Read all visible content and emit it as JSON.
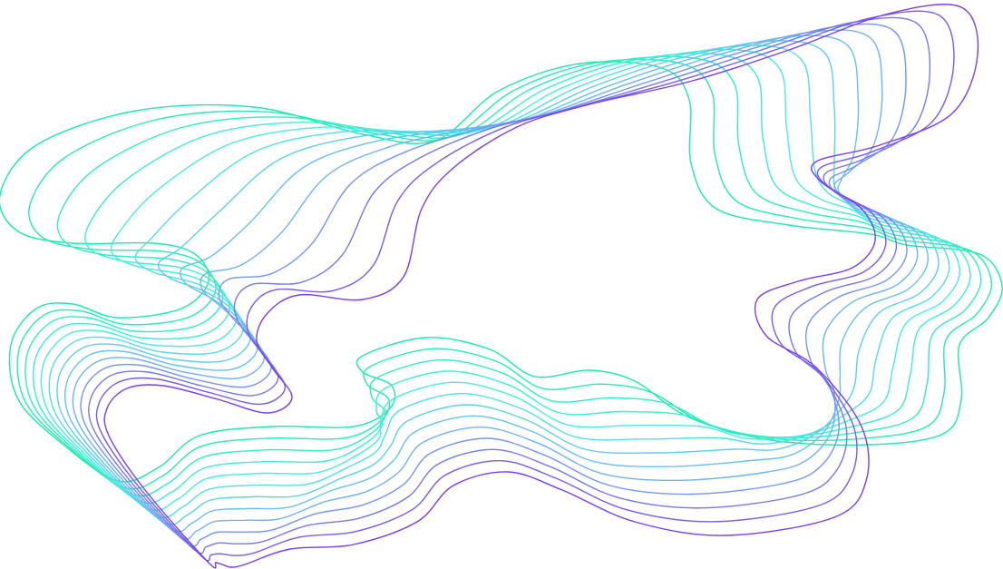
{
  "artwork": {
    "style": "abstract flowing contour lines",
    "line_count": 13,
    "colors": {
      "outer": "#14eea0",
      "middle_1": "#45ece4",
      "middle_2": "#6fb2f7",
      "inner": "#7a3cf3"
    },
    "background": "#ffffff"
  }
}
